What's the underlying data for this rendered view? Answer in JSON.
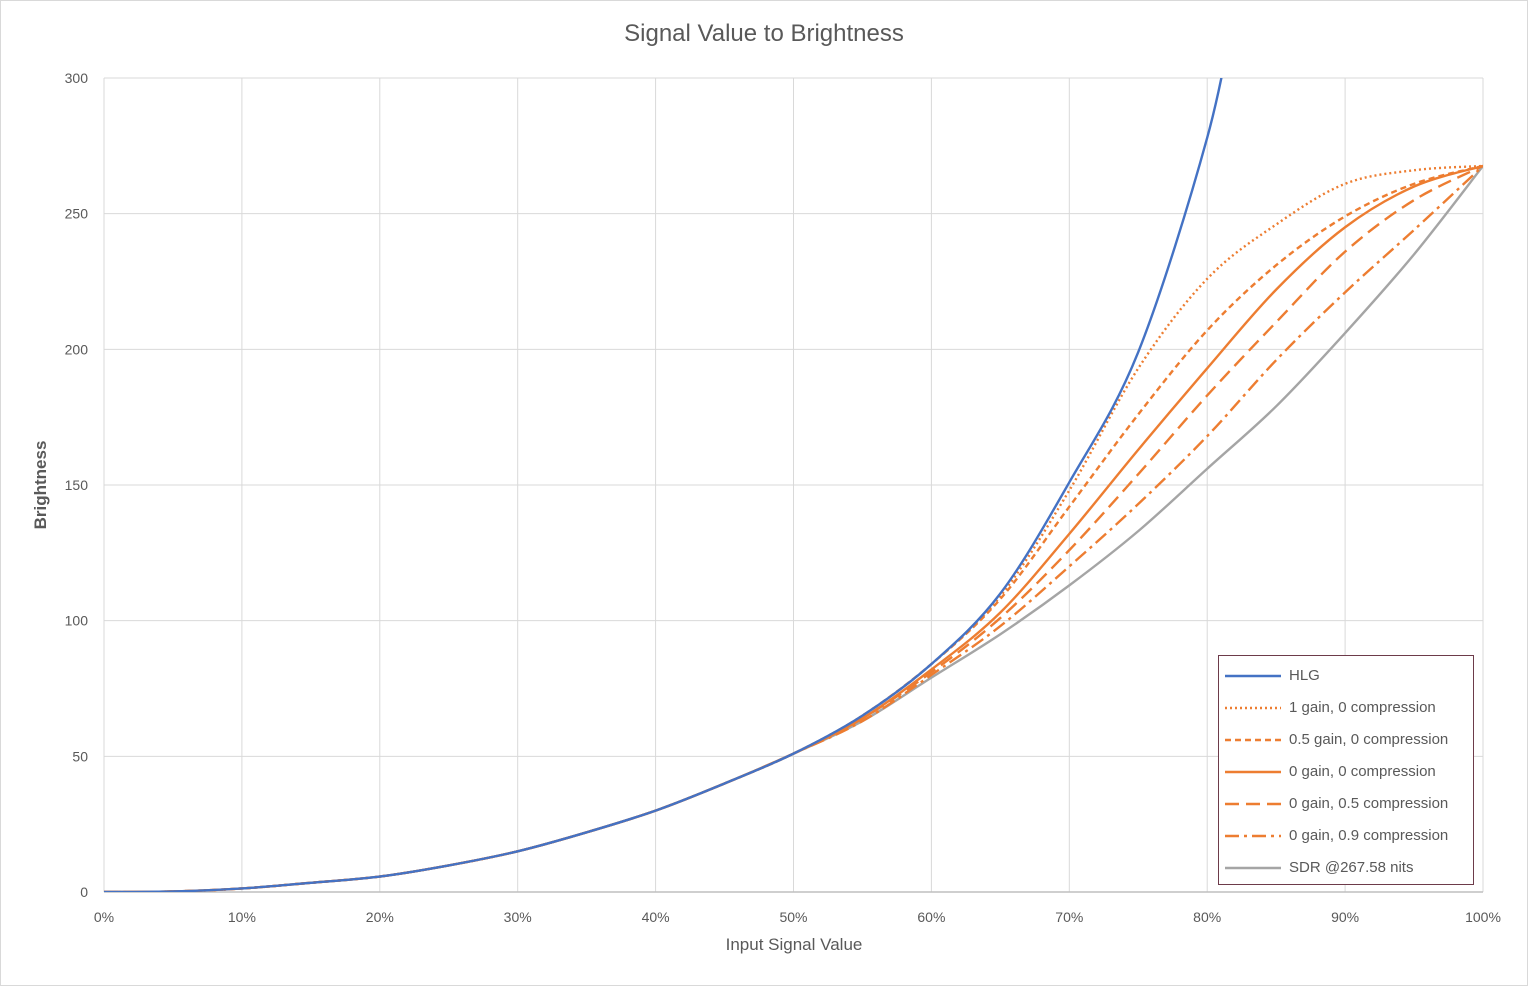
{
  "chart_data": {
    "type": "line",
    "title": "Signal Value to Brightness",
    "xlabel": "Input Signal Value",
    "ylabel": "Brightness",
    "xlim": [
      0,
      1
    ],
    "ylim": [
      0,
      300
    ],
    "x_ticks": [
      "0%",
      "10%",
      "20%",
      "30%",
      "40%",
      "50%",
      "60%",
      "70%",
      "80%",
      "90%",
      "100%"
    ],
    "y_ticks": [
      "0",
      "50",
      "100",
      "150",
      "200",
      "250",
      "300"
    ],
    "grid": true,
    "legend_position": "bottom-right",
    "x": [
      0,
      0.05,
      0.1,
      0.15,
      0.2,
      0.25,
      0.3,
      0.35,
      0.4,
      0.45,
      0.5,
      0.55,
      0.6,
      0.65,
      0.7,
      0.75,
      0.8,
      0.85,
      0.9,
      0.95,
      1.0
    ],
    "series": [
      {
        "name": "HLG",
        "color": "#4472c4",
        "dash": "solid",
        "values": [
          0,
          0.2,
          1.3,
          3.4,
          5.7,
          9.8,
          15,
          22,
          30,
          40,
          51,
          65,
          84,
          110,
          151,
          199,
          278,
          null,
          null,
          null,
          null
        ]
      },
      {
        "name": "1 gain, 0 compression",
        "color": "#ed7d31",
        "dash": "dotted",
        "values": [
          0,
          0.2,
          1.3,
          3.4,
          5.7,
          9.8,
          15,
          22,
          30,
          40,
          51,
          65,
          84,
          109,
          148,
          193,
          226,
          246,
          261,
          266,
          267.58
        ]
      },
      {
        "name": "0.5 gain, 0 compression",
        "color": "#ed7d31",
        "dash": "dashed-short",
        "values": [
          0,
          0.2,
          1.3,
          3.4,
          5.7,
          9.8,
          15,
          22,
          30,
          40,
          51,
          65,
          84,
          108,
          142,
          176,
          207,
          231,
          249,
          261,
          267.58
        ]
      },
      {
        "name": "0 gain, 0 compression",
        "color": "#ed7d31",
        "dash": "solid",
        "values": [
          0,
          0.2,
          1.3,
          3.4,
          5.7,
          9.8,
          15,
          22,
          30,
          40,
          51,
          64,
          82,
          103,
          132,
          163,
          193,
          222,
          245,
          260,
          267.58
        ]
      },
      {
        "name": "0 gain, 0.5 compression",
        "color": "#ed7d31",
        "dash": "dashed-long",
        "values": [
          0,
          0.2,
          1.3,
          3.4,
          5.7,
          9.8,
          15,
          22,
          30,
          40,
          51,
          64,
          81,
          101,
          126,
          154,
          183,
          210,
          236,
          255,
          267.58
        ]
      },
      {
        "name": "0 gain, 0.9 compression",
        "color": "#ed7d31",
        "dash": "dash-dot",
        "values": [
          0,
          0.2,
          1.3,
          3.4,
          5.7,
          9.8,
          15,
          22,
          30,
          40,
          51,
          63,
          80,
          98,
          120,
          143,
          168,
          196,
          221,
          244,
          267.58
        ]
      },
      {
        "name": "SDR @267.58 nits",
        "color": "#a5a5a5",
        "dash": "solid",
        "values": [
          0,
          0.2,
          1.3,
          3.4,
          5.7,
          9.8,
          15,
          22,
          30,
          40,
          51,
          63,
          79,
          95,
          113,
          133,
          156,
          179,
          206,
          235,
          267.58
        ]
      }
    ]
  }
}
